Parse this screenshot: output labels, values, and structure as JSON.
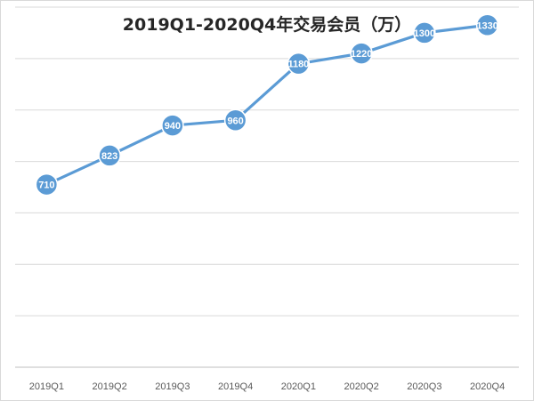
{
  "chart_data": {
    "type": "line",
    "title": "2019Q1-2020Q4年交易会员（万）",
    "xlabel": "",
    "ylabel": "",
    "categories": [
      "2019Q1",
      "2019Q2",
      "2019Q3",
      "2019Q4",
      "2020Q1",
      "2020Q2",
      "2020Q3",
      "2020Q4"
    ],
    "series": [
      {
        "values": [
          710,
          823,
          940,
          960,
          1180,
          1220,
          1300,
          1330
        ]
      }
    ],
    "ylim": [
      0,
      1400
    ],
    "y_grid_step": 200,
    "y_tick_labels_shown": false,
    "grid": true,
    "legend": "none",
    "colors": {
      "line": "#5b9bd5",
      "marker": "#5b9bd5",
      "data_label": "#ffffff",
      "grid": "#d9d9d9",
      "axis": "#bfbfbf",
      "tick_label": "#595959",
      "title": "#262626"
    }
  }
}
